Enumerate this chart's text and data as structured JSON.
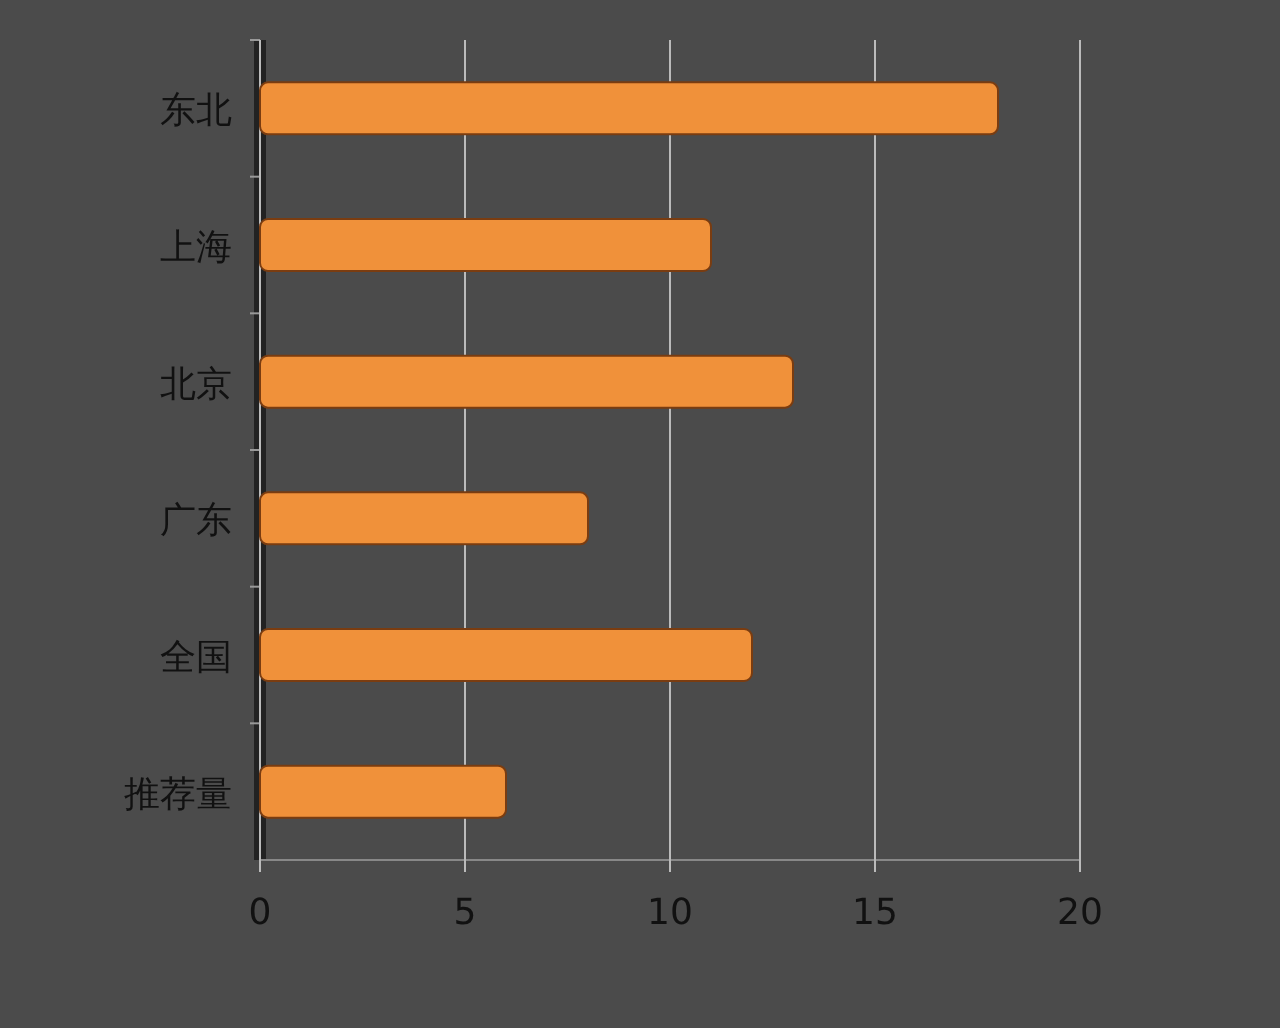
{
  "chart_data": {
    "type": "bar",
    "orientation": "horizontal",
    "categories": [
      "东北",
      "上海",
      "北京",
      "广东",
      "全国",
      "推荐量"
    ],
    "values": [
      18,
      11,
      13,
      8,
      12,
      6
    ],
    "color": "#f0913a",
    "xlim": [
      0,
      20
    ],
    "xticks": [
      0,
      5,
      10,
      15,
      20
    ],
    "grid": "x"
  }
}
